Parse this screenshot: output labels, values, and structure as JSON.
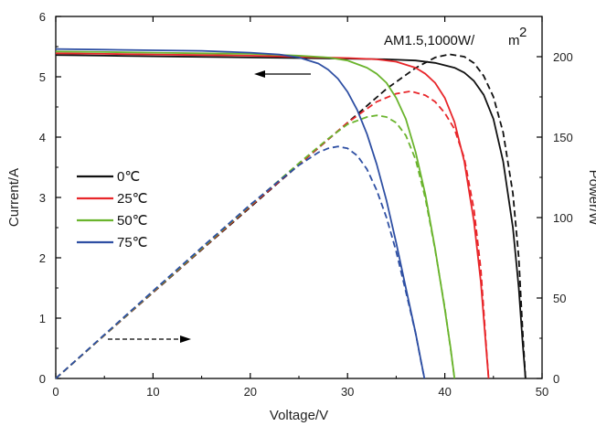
{
  "chart_data": {
    "type": "line",
    "xlabel": "Voltage/V",
    "ylabel_left": "Current/A",
    "ylabel_right": "Power/W",
    "xlim": [
      0,
      50
    ],
    "ylim_left": [
      0,
      6
    ],
    "ylim_right": [
      0,
      225
    ],
    "xticks": [
      0,
      10,
      20,
      30,
      40,
      50
    ],
    "yticks_left": [
      0,
      1,
      2,
      3,
      4,
      5,
      6
    ],
    "yticks_right": [
      0,
      50,
      100,
      150,
      200
    ],
    "grid": false,
    "legend_position": "left",
    "annotation": {
      "text": "AM1.5,1000W/",
      "unit_base": "m",
      "unit_exp": "2"
    },
    "series": [
      {
        "name": "0℃",
        "color": "#111111",
        "iv": [
          [
            0,
            5.36
          ],
          [
            5,
            5.35
          ],
          [
            10,
            5.34
          ],
          [
            15,
            5.33
          ],
          [
            20,
            5.32
          ],
          [
            25,
            5.31
          ],
          [
            30,
            5.3
          ],
          [
            34,
            5.29
          ],
          [
            37,
            5.27
          ],
          [
            39,
            5.23
          ],
          [
            41,
            5.15
          ],
          [
            42,
            5.07
          ],
          [
            43,
            4.93
          ],
          [
            44,
            4.7
          ],
          [
            45,
            4.3
          ],
          [
            46,
            3.6
          ],
          [
            47,
            2.5
          ],
          [
            47.6,
            1.5
          ],
          [
            48,
            0.6
          ],
          [
            48.3,
            0
          ]
        ],
        "pv": [
          [
            0,
            0
          ],
          [
            5,
            26.8
          ],
          [
            10,
            53.4
          ],
          [
            15,
            80
          ],
          [
            20,
            106.4
          ],
          [
            25,
            132.8
          ],
          [
            30,
            159
          ],
          [
            34,
            180
          ],
          [
            37,
            193
          ],
          [
            39,
            199.5
          ],
          [
            40.5,
            201.5
          ],
          [
            42,
            200
          ],
          [
            43,
            196
          ],
          [
            44,
            188
          ],
          [
            45,
            175
          ],
          [
            46,
            153
          ],
          [
            47,
            115
          ],
          [
            47.6,
            75
          ],
          [
            48,
            30
          ],
          [
            48.3,
            0
          ]
        ]
      },
      {
        "name": "25℃",
        "color": "#e8262a",
        "iv": [
          [
            0,
            5.39
          ],
          [
            5,
            5.38
          ],
          [
            10,
            5.37
          ],
          [
            15,
            5.36
          ],
          [
            20,
            5.35
          ],
          [
            25,
            5.33
          ],
          [
            30,
            5.31
          ],
          [
            33,
            5.29
          ],
          [
            35,
            5.25
          ],
          [
            37,
            5.15
          ],
          [
            38,
            5.05
          ],
          [
            39,
            4.9
          ],
          [
            40,
            4.65
          ],
          [
            41,
            4.25
          ],
          [
            42,
            3.6
          ],
          [
            43,
            2.6
          ],
          [
            43.7,
            1.6
          ],
          [
            44.2,
            0.6
          ],
          [
            44.5,
            0
          ]
        ],
        "pv": [
          [
            0,
            0
          ],
          [
            5,
            26.9
          ],
          [
            10,
            53.7
          ],
          [
            15,
            80.4
          ],
          [
            20,
            107
          ],
          [
            25,
            133
          ],
          [
            30,
            159
          ],
          [
            33,
            172
          ],
          [
            35,
            177
          ],
          [
            36.5,
            178.5
          ],
          [
            38,
            176
          ],
          [
            39,
            172
          ],
          [
            40,
            165
          ],
          [
            41,
            155
          ],
          [
            42,
            137
          ],
          [
            43,
            105
          ],
          [
            43.7,
            68
          ],
          [
            44.2,
            25
          ],
          [
            44.5,
            0
          ]
        ]
      },
      {
        "name": "50℃",
        "color": "#6ab42d",
        "iv": [
          [
            0,
            5.42
          ],
          [
            5,
            5.41
          ],
          [
            10,
            5.4
          ],
          [
            15,
            5.39
          ],
          [
            20,
            5.38
          ],
          [
            25,
            5.35
          ],
          [
            28,
            5.32
          ],
          [
            30,
            5.27
          ],
          [
            32,
            5.15
          ],
          [
            33,
            5.05
          ],
          [
            34,
            4.9
          ],
          [
            35,
            4.65
          ],
          [
            36,
            4.3
          ],
          [
            37,
            3.75
          ],
          [
            38,
            3.05
          ],
          [
            39,
            2.15
          ],
          [
            40,
            1.15
          ],
          [
            40.6,
            0.5
          ],
          [
            41,
            0
          ]
        ],
        "pv": [
          [
            0,
            0
          ],
          [
            5,
            27
          ],
          [
            10,
            54
          ],
          [
            15,
            80.8
          ],
          [
            20,
            107.6
          ],
          [
            25,
            133.8
          ],
          [
            28,
            149
          ],
          [
            30,
            158
          ],
          [
            32,
            162.5
          ],
          [
            33,
            163.5
          ],
          [
            34,
            162.5
          ],
          [
            35,
            159
          ],
          [
            36,
            151
          ],
          [
            37,
            136
          ],
          [
            38,
            112
          ],
          [
            39,
            80
          ],
          [
            40,
            44
          ],
          [
            40.6,
            18
          ],
          [
            41,
            0
          ]
        ]
      },
      {
        "name": "75℃",
        "color": "#2e4fa3",
        "iv": [
          [
            0,
            5.46
          ],
          [
            5,
            5.45
          ],
          [
            10,
            5.44
          ],
          [
            15,
            5.43
          ],
          [
            20,
            5.4
          ],
          [
            23,
            5.37
          ],
          [
            25,
            5.32
          ],
          [
            27,
            5.22
          ],
          [
            28,
            5.12
          ],
          [
            29,
            4.97
          ],
          [
            30,
            4.75
          ],
          [
            31,
            4.45
          ],
          [
            32,
            4.05
          ],
          [
            33,
            3.55
          ],
          [
            34,
            2.95
          ],
          [
            35,
            2.25
          ],
          [
            36,
            1.5
          ],
          [
            37,
            0.75
          ],
          [
            37.6,
            0.25
          ],
          [
            37.9,
            0
          ]
        ],
        "pv": [
          [
            0,
            0
          ],
          [
            5,
            27.2
          ],
          [
            10,
            54.4
          ],
          [
            15,
            81.4
          ],
          [
            20,
            108
          ],
          [
            23,
            123
          ],
          [
            25,
            132.5
          ],
          [
            27,
            140.5
          ],
          [
            28,
            143
          ],
          [
            29,
            144.2
          ],
          [
            30,
            143
          ],
          [
            31,
            138.5
          ],
          [
            32,
            130
          ],
          [
            33,
            117
          ],
          [
            34,
            100
          ],
          [
            35,
            79
          ],
          [
            36,
            54
          ],
          [
            37,
            28
          ],
          [
            37.6,
            9
          ],
          [
            37.9,
            0
          ]
        ]
      }
    ]
  }
}
